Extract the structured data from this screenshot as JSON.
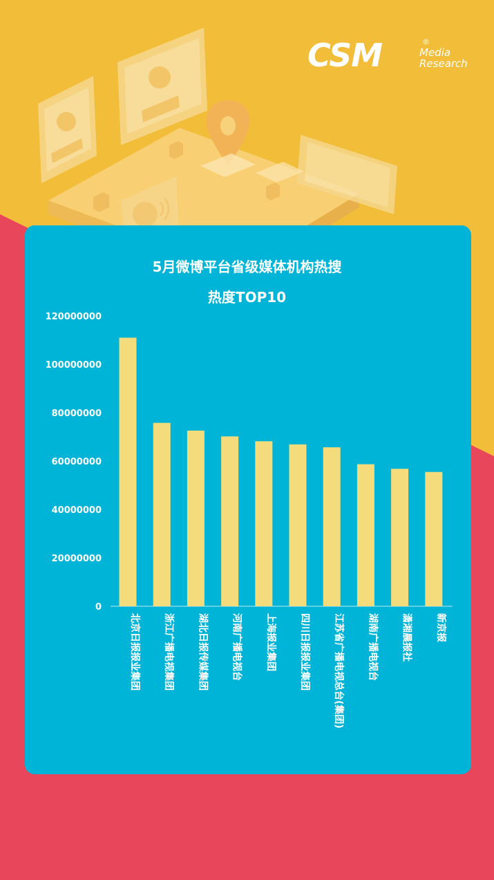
{
  "brand": {
    "name": "CSM",
    "registered": "®",
    "line1": "Media",
    "line2": "Research"
  },
  "colors": {
    "top_background": "#F2BE3A",
    "bottom_background": "#E8465A",
    "card": "#00B4D8",
    "bar": "#F4DC7C",
    "text": "#FFFFFF"
  },
  "chart_data": {
    "type": "bar",
    "title": "5月微博平台省级媒体机构热搜",
    "subtitle": "热度TOP10",
    "xlabel": "",
    "ylabel": "",
    "ylim": [
      0,
      120000000
    ],
    "yticks": [
      "0",
      "20000000",
      "40000000",
      "60000000",
      "80000000",
      "100000000",
      "120000000"
    ],
    "grid": false,
    "legend": "none",
    "categories": [
      "北京日报报业集团",
      "浙江广播电视集团",
      "湖北日报传媒集团",
      "河南广播电视台",
      "上海报业集团",
      "四川日报报业集团",
      "江苏省广播电视总台(集团)",
      "湖南广播电视台",
      "潇湘晨报社",
      "新京报"
    ],
    "values": [
      111000000,
      75800000,
      72600000,
      70200000,
      68200000,
      66900000,
      65700000,
      58700000,
      56800000,
      55500000
    ]
  }
}
